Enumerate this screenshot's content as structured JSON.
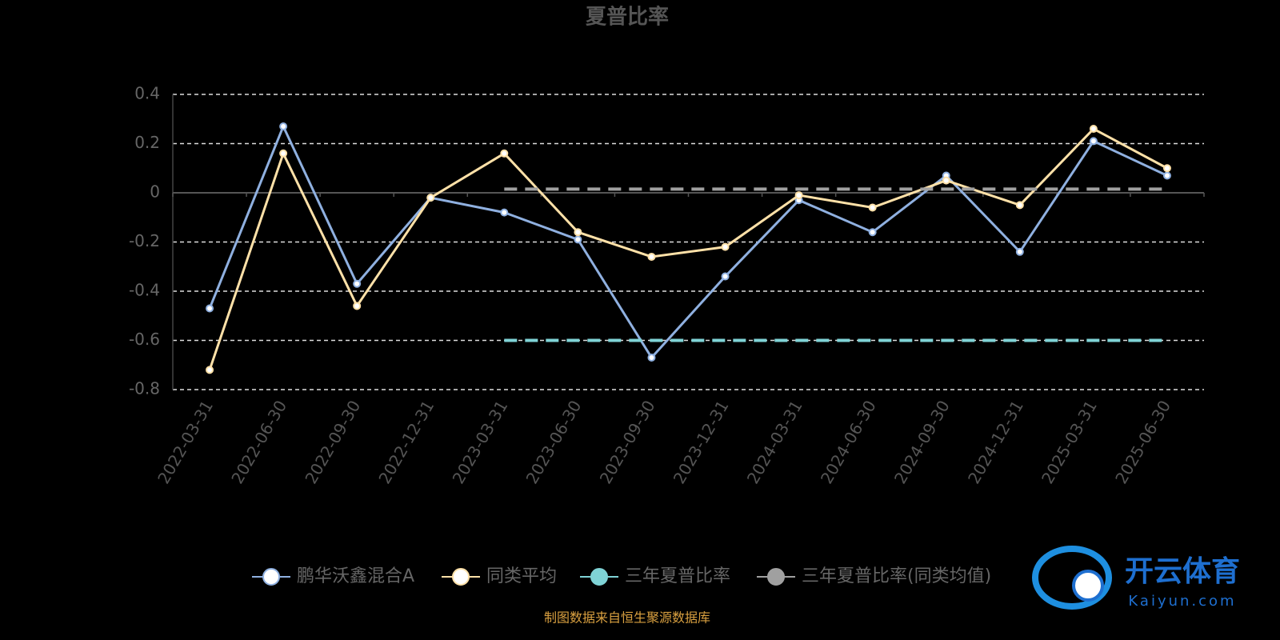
{
  "chart_data": {
    "type": "line",
    "title": "夏普比率",
    "categories": [
      "2022-03-31",
      "2022-06-30",
      "2022-09-30",
      "2022-12-31",
      "2023-03-31",
      "2023-06-30",
      "2023-09-30",
      "2023-12-31",
      "2024-03-31",
      "2024-06-30",
      "2024-09-30",
      "2024-12-31",
      "2025-03-31",
      "2025-06-30"
    ],
    "series": [
      {
        "name": "鹏华沃鑫混合A",
        "color": "#8fb0e0",
        "values": [
          -0.47,
          0.27,
          -0.37,
          -0.02,
          -0.08,
          -0.19,
          -0.67,
          -0.34,
          -0.03,
          -0.16,
          0.07,
          -0.24,
          0.21,
          0.07
        ]
      },
      {
        "name": "同类平均",
        "color": "#ffe1a8",
        "values": [
          -0.72,
          0.16,
          -0.46,
          -0.02,
          0.16,
          -0.16,
          -0.26,
          -0.22,
          -0.01,
          -0.06,
          0.05,
          -0.05,
          0.26,
          0.1
        ]
      },
      {
        "name": "三年夏普比率",
        "color": "#7fd3d6",
        "dashed": true,
        "values": [
          null,
          null,
          null,
          null,
          -0.6,
          -0.6,
          -0.6,
          -0.6,
          -0.6,
          -0.6,
          -0.6,
          -0.6,
          -0.6,
          -0.6
        ]
      },
      {
        "name": "三年夏普比率(同类均值)",
        "color": "#a0a0a0",
        "dashed": true,
        "values": [
          null,
          null,
          null,
          null,
          0.015,
          0.015,
          0.015,
          0.015,
          0.015,
          0.015,
          0.015,
          0.015,
          0.015,
          0.015
        ]
      }
    ],
    "ylim": [
      -0.8,
      0.4
    ],
    "yticks": [
      -0.8,
      -0.6,
      -0.4,
      -0.2,
      0,
      0.2,
      0.4
    ],
    "grid": true,
    "source": "制图数据来自恒生聚源数据库"
  },
  "watermark": {
    "brand": "开云体育",
    "site": "Kaiyun.com"
  }
}
